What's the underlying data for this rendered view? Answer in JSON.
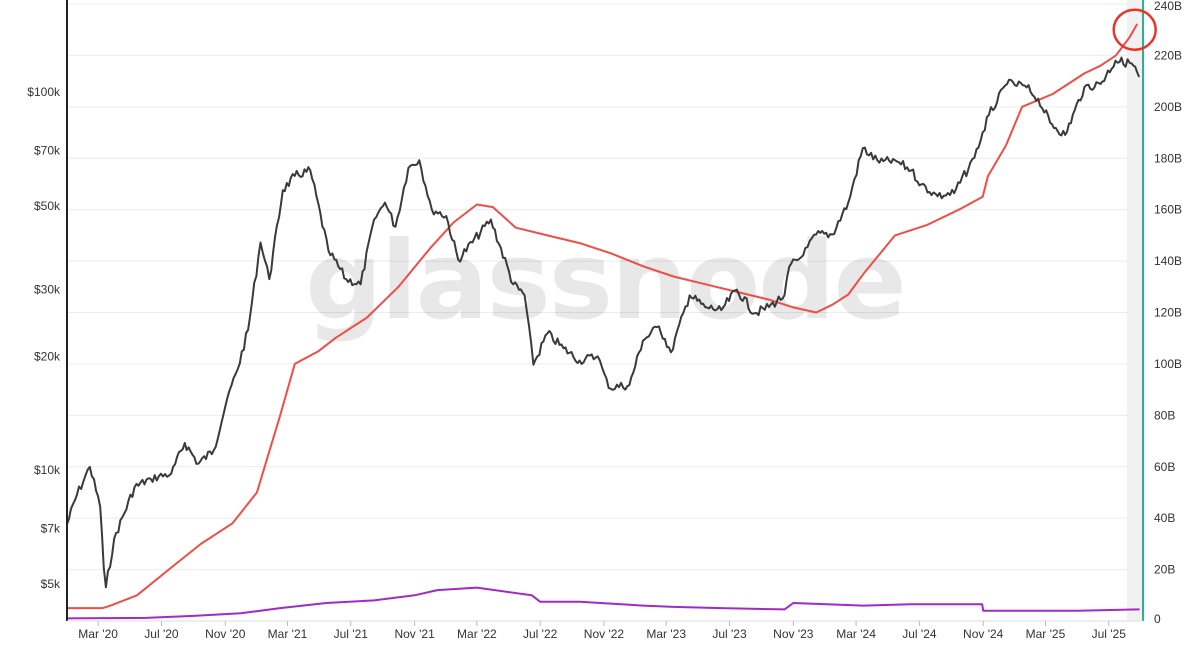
{
  "watermark": "glassnode",
  "colors": {
    "price": "#3a3a3a",
    "red_series": "#ef4e45",
    "purple_series": "#a22ac7",
    "right_axis": "#27b58a",
    "left_axis": "#222222",
    "grid": "#ececec",
    "highlight_circle": "#e8352b",
    "shade": "#f1f1f1"
  },
  "chart_data": {
    "type": "line",
    "title": "",
    "xlabel": "",
    "ylabel": "",
    "grid": "horizontal",
    "x_ticks": [
      "Mar '20",
      "Jul '20",
      "Nov '20",
      "Mar '21",
      "Jul '21",
      "Nov '21",
      "Mar '22",
      "Jul '22",
      "Nov '22",
      "Mar '23",
      "Jul '23",
      "Nov '23",
      "Mar '24",
      "Jul '24",
      "Nov '24",
      "Mar '25",
      "Jul '25"
    ],
    "left_axis": {
      "scale": "log",
      "ticks": [
        {
          "label": "$5k",
          "value": 5000
        },
        {
          "label": "$7k",
          "value": 7000
        },
        {
          "label": "$10k",
          "value": 10000
        },
        {
          "label": "$20k",
          "value": 20000
        },
        {
          "label": "$30k",
          "value": 30000
        },
        {
          "label": "$50k",
          "value": 50000
        },
        {
          "label": "$70k",
          "value": 70000
        },
        {
          "label": "$100k",
          "value": 100000
        }
      ]
    },
    "right_axis": {
      "scale": "linear",
      "range": [
        0,
        240
      ],
      "ticks": [
        "0",
        "20B",
        "40B",
        "60B",
        "80B",
        "100B",
        "120B",
        "140B",
        "160B",
        "180B",
        "200B",
        "220B",
        "240B"
      ]
    },
    "series": [
      {
        "axis": "left",
        "color": "#3a3a3a",
        "x": [
          "2020-01-01",
          "2020-01-20",
          "2020-02-14",
          "2020-03-05",
          "2020-03-12",
          "2020-03-16",
          "2020-04-01",
          "2020-05-10",
          "2020-06-10",
          "2020-07-20",
          "2020-08-15",
          "2020-09-10",
          "2020-10-10",
          "2020-11-05",
          "2020-11-25",
          "2020-12-15",
          "2021-01-08",
          "2021-01-25",
          "2021-02-20",
          "2021-03-15",
          "2021-04-14",
          "2021-05-19",
          "2021-06-22",
          "2021-07-20",
          "2021-08-15",
          "2021-09-05",
          "2021-09-25",
          "2021-10-20",
          "2021-11-10",
          "2021-12-04",
          "2022-01-01",
          "2022-01-24",
          "2022-03-28",
          "2022-05-10",
          "2022-06-01",
          "2022-06-18",
          "2022-07-15",
          "2022-08-15",
          "2022-09-15",
          "2022-10-20",
          "2022-11-10",
          "2022-12-20",
          "2023-01-15",
          "2023-02-15",
          "2023-03-10",
          "2023-04-15",
          "2023-05-15",
          "2023-06-15",
          "2023-07-15",
          "2023-08-18",
          "2023-09-15",
          "2023-10-15",
          "2023-10-24",
          "2023-11-20",
          "2023-12-15",
          "2024-01-15",
          "2024-02-15",
          "2024-03-14",
          "2024-04-15",
          "2024-05-15",
          "2024-06-15",
          "2024-07-05",
          "2024-08-05",
          "2024-09-06",
          "2024-10-15",
          "2024-11-12",
          "2024-12-17",
          "2025-01-20",
          "2025-02-15",
          "2025-03-10",
          "2025-04-08",
          "2025-05-15",
          "2025-06-15",
          "2025-07-14",
          "2025-08-14",
          "2025-08-28"
        ],
        "values": [
          7200,
          8600,
          10200,
          8000,
          5500,
          4900,
          6600,
          9000,
          9500,
          9800,
          11800,
          10400,
          11300,
          15500,
          18500,
          23500,
          40000,
          32000,
          55000,
          60000,
          62000,
          38000,
          32000,
          31000,
          46000,
          51000,
          44000,
          63000,
          66000,
          49000,
          47000,
          36000,
          46000,
          31000,
          29000,
          19000,
          23000,
          21000,
          19500,
          20000,
          16500,
          16800,
          22000,
          24000,
          20500,
          29000,
          27000,
          26500,
          30000,
          26000,
          27000,
          29000,
          34500,
          37000,
          42000,
          42000,
          51000,
          71000,
          65000,
          66000,
          62000,
          57000,
          53000,
          54000,
          67000,
          87000,
          105000,
          104000,
          96000,
          83000,
          77000,
          103000,
          105000,
          121000,
          119000,
          110000
        ]
      },
      {
        "axis": "right",
        "unit": "B",
        "color": "#ef4e45",
        "x": [
          "2020-01-01",
          "2020-03-10",
          "2020-03-25",
          "2020-05-15",
          "2020-07-15",
          "2020-09-15",
          "2020-11-15",
          "2021-01-01",
          "2021-02-15",
          "2021-03-15",
          "2021-04-30",
          "2021-06-01",
          "2021-08-01",
          "2021-10-01",
          "2021-12-01",
          "2022-01-15",
          "2022-03-01",
          "2022-04-01",
          "2022-05-15",
          "2022-07-15",
          "2022-09-15",
          "2022-11-15",
          "2023-01-15",
          "2023-03-15",
          "2023-05-15",
          "2023-07-15",
          "2023-09-15",
          "2023-11-01",
          "2023-12-15",
          "2024-01-15",
          "2024-02-15",
          "2024-03-15",
          "2024-05-15",
          "2024-07-15",
          "2024-09-15",
          "2024-10-31",
          "2024-11-10",
          "2024-12-15",
          "2025-01-15",
          "2025-03-15",
          "2025-05-15",
          "2025-06-15",
          "2025-07-15",
          "2025-08-10",
          "2025-08-24"
        ],
        "values": [
          5,
          5,
          6,
          10,
          20,
          30,
          38,
          50,
          80,
          100,
          105,
          110,
          118,
          130,
          145,
          155,
          162,
          161,
          153,
          150,
          147,
          143,
          138,
          134,
          131,
          128,
          125,
          122,
          120,
          123,
          127,
          135,
          150,
          154,
          160,
          165,
          173,
          185,
          200,
          205,
          213,
          216,
          220,
          227,
          232
        ]
      },
      {
        "axis": "right",
        "unit": "B",
        "color": "#a22ac7",
        "x": [
          "2020-01-01",
          "2020-06-01",
          "2020-09-01",
          "2020-12-01",
          "2021-02-15",
          "2021-05-15",
          "2021-08-15",
          "2021-11-01",
          "2021-12-15",
          "2022-03-01",
          "2022-06-15",
          "2022-07-01",
          "2022-09-15",
          "2023-01-15",
          "2023-03-15",
          "2023-06-15",
          "2023-10-15",
          "2023-11-01",
          "2024-03-15",
          "2024-06-15",
          "2024-10-30",
          "2024-11-01",
          "2025-01-15",
          "2025-05-01",
          "2025-08-28"
        ],
        "values": [
          1,
          1.2,
          2,
          3,
          5,
          7,
          8,
          10,
          12,
          13,
          10,
          7.5,
          7.5,
          6,
          5.5,
          5,
          4.5,
          7,
          6,
          6.5,
          6.5,
          4,
          4,
          4,
          4.5
        ]
      }
    ],
    "annotations": [
      {
        "type": "circle",
        "color": "#e8352b",
        "target": "red series peak",
        "x": "2025-08-20",
        "y_right": 230
      }
    ]
  }
}
